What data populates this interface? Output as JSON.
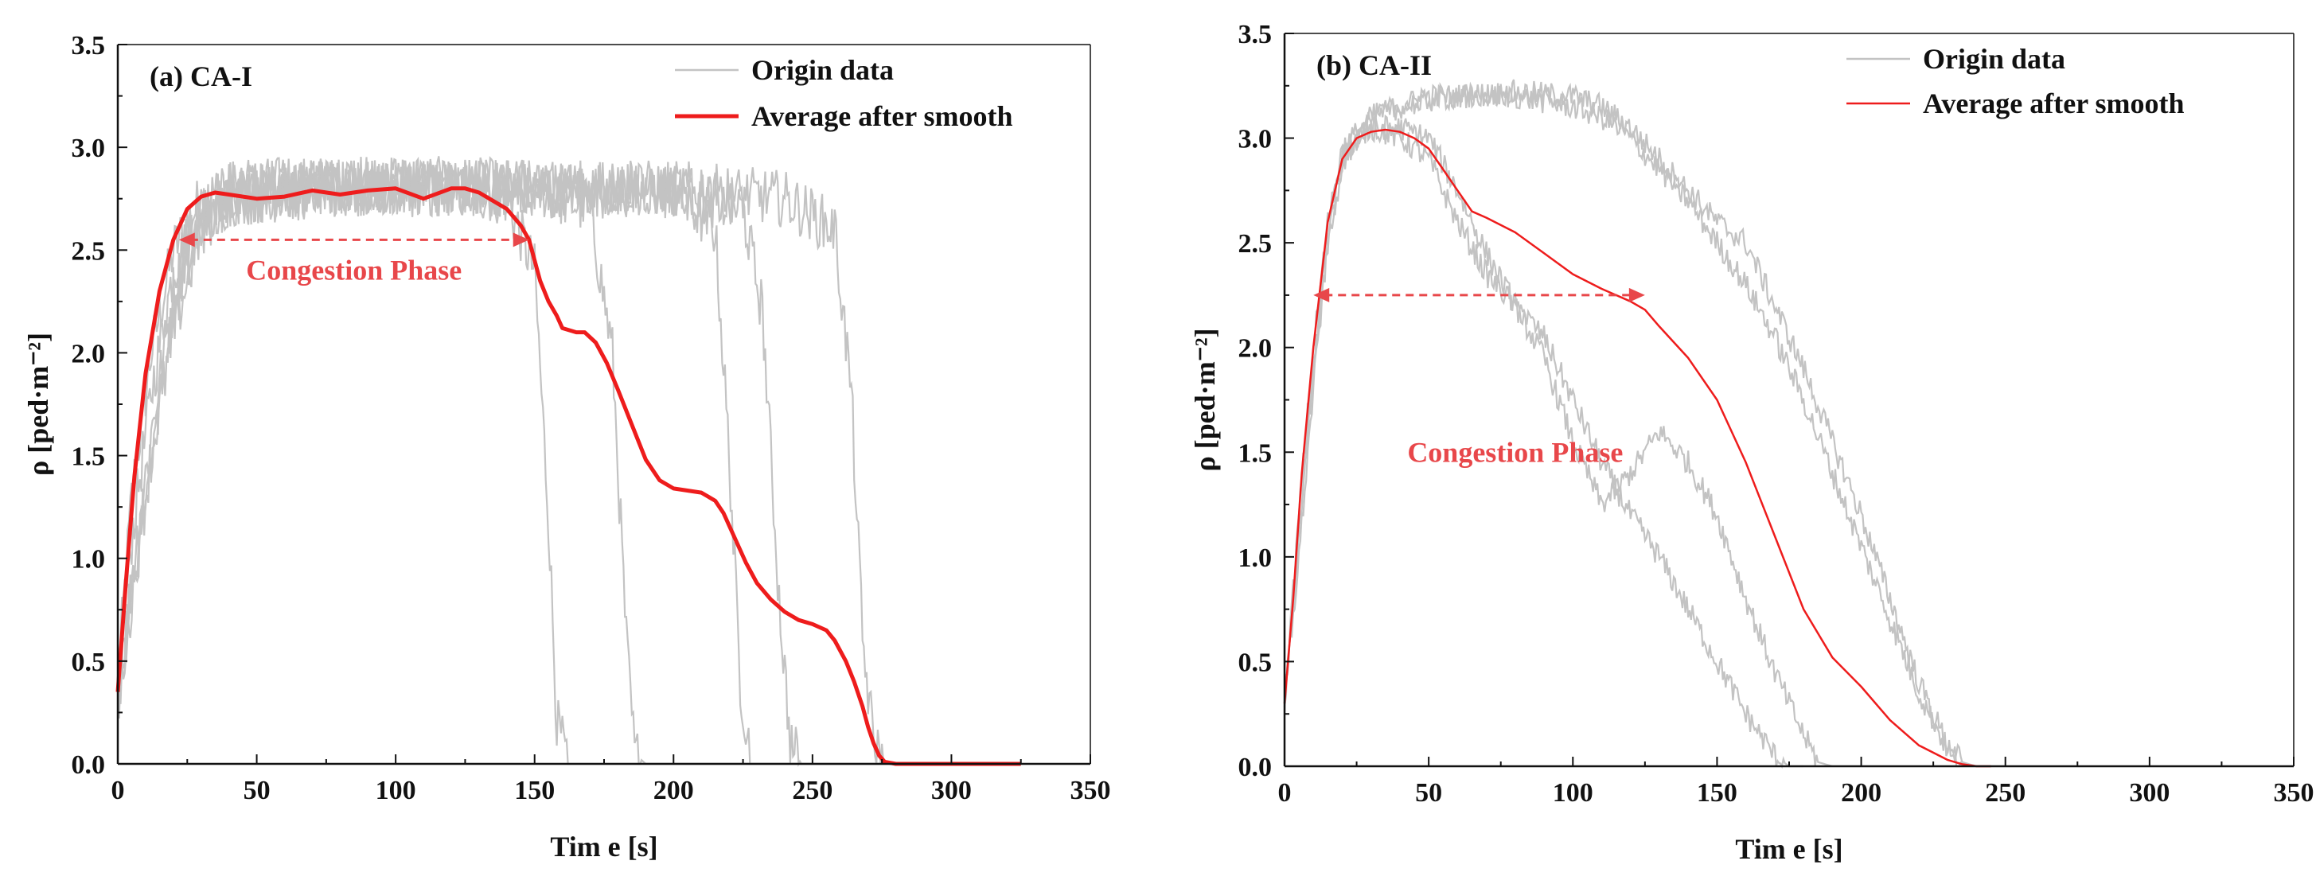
{
  "chart_data": [
    {
      "type": "line",
      "panel_label": "(a) CA-I",
      "xlabel": "Tim e [s]",
      "ylabel": "ρ [ped·m⁻²]",
      "xlim": [
        0,
        350
      ],
      "ylim": [
        0,
        3.5
      ],
      "xticks": [
        "0",
        "50",
        "100",
        "150",
        "200",
        "250",
        "300",
        "350"
      ],
      "yticks": [
        "0.0",
        "0.5",
        "1.0",
        "1.5",
        "2.0",
        "2.5",
        "3.0",
        "3.5"
      ],
      "legend": {
        "position": "top-right",
        "entries": [
          "Origin data",
          "Average after smooth"
        ]
      },
      "annotation": {
        "text": "Congestion Phase",
        "x_start": 22,
        "x_end": 148,
        "y": 2.55
      },
      "series": [
        {
          "name": "Origin data",
          "runs": [
            {
              "x": [
                0,
                5,
                12,
                20,
                30,
                40,
                60,
                90,
                120,
                140,
                150,
                155,
                158,
                162,
                170,
                200,
                250,
                325
              ],
              "y": [
                0.4,
                1.3,
                2.0,
                2.5,
                2.75,
                2.8,
                2.8,
                2.82,
                2.8,
                2.75,
                2.4,
                1.2,
                0.2,
                0.0,
                0.0,
                0.0,
                0.0,
                0.0
              ]
            },
            {
              "x": [
                0,
                5,
                12,
                20,
                30,
                40,
                60,
                90,
                120,
                150,
                170,
                178,
                183,
                186,
                190,
                250,
                325
              ],
              "y": [
                0.35,
                1.1,
                1.8,
                2.4,
                2.7,
                2.8,
                2.82,
                2.8,
                2.82,
                2.8,
                2.7,
                2.0,
                0.6,
                0.05,
                0.0,
                0.0,
                0.0
              ]
            },
            {
              "x": [
                0,
                5,
                12,
                20,
                30,
                40,
                80,
                120,
                160,
                200,
                215,
                220,
                224,
                228,
                232,
                325
              ],
              "y": [
                0.3,
                0.9,
                1.6,
                2.3,
                2.7,
                2.8,
                2.82,
                2.8,
                2.8,
                2.78,
                2.6,
                1.5,
                0.4,
                0.0,
                0.0,
                0.0
              ]
            },
            {
              "x": [
                0,
                5,
                12,
                20,
                30,
                40,
                80,
                120,
                160,
                200,
                225,
                232,
                238,
                242,
                246,
                325
              ],
              "y": [
                0.3,
                0.85,
                1.5,
                2.2,
                2.6,
                2.75,
                2.8,
                2.8,
                2.8,
                2.8,
                2.7,
                2.2,
                0.8,
                0.1,
                0.0,
                0.0
              ]
            },
            {
              "x": [
                0,
                5,
                12,
                20,
                30,
                40,
                80,
                120,
                160,
                200,
                240,
                258,
                264,
                268,
                272,
                276,
                325
              ],
              "y": [
                0.3,
                0.8,
                1.5,
                2.1,
                2.6,
                2.75,
                2.8,
                2.8,
                2.8,
                2.8,
                2.75,
                2.6,
                1.8,
                0.6,
                0.1,
                0.0,
                0.0
              ]
            }
          ]
        },
        {
          "name": "Average after smooth",
          "x": [
            0,
            3,
            6,
            10,
            15,
            20,
            25,
            30,
            35,
            40,
            50,
            60,
            70,
            80,
            90,
            100,
            110,
            120,
            125,
            130,
            140,
            145,
            148,
            150,
            152,
            155,
            158,
            160,
            165,
            168,
            172,
            176,
            180,
            185,
            190,
            195,
            200,
            205,
            210,
            215,
            218,
            222,
            226,
            230,
            235,
            240,
            245,
            250,
            255,
            258,
            262,
            265,
            268,
            270,
            272,
            274,
            276,
            280,
            300,
            325
          ],
          "y": [
            0.35,
            0.9,
            1.4,
            1.9,
            2.3,
            2.55,
            2.7,
            2.76,
            2.78,
            2.77,
            2.75,
            2.76,
            2.79,
            2.77,
            2.79,
            2.8,
            2.75,
            2.8,
            2.8,
            2.78,
            2.7,
            2.62,
            2.55,
            2.45,
            2.35,
            2.25,
            2.18,
            2.12,
            2.1,
            2.1,
            2.05,
            1.95,
            1.82,
            1.65,
            1.48,
            1.38,
            1.34,
            1.33,
            1.32,
            1.28,
            1.22,
            1.1,
            0.98,
            0.88,
            0.8,
            0.74,
            0.7,
            0.68,
            0.65,
            0.6,
            0.5,
            0.4,
            0.28,
            0.18,
            0.1,
            0.04,
            0.01,
            0.0,
            0.0,
            0.0
          ]
        }
      ]
    },
    {
      "type": "line",
      "panel_label": "(b) CA-II",
      "xlabel": "Tim e [s]",
      "ylabel": "ρ [ped·m⁻²]",
      "xlim": [
        0,
        350
      ],
      "ylim": [
        0,
        3.5
      ],
      "xticks": [
        "0",
        "50",
        "100",
        "150",
        "200",
        "250",
        "300",
        "350"
      ],
      "yticks": [
        "0.0",
        "0.5",
        "1.0",
        "1.5",
        "2.0",
        "2.5",
        "3.0",
        "3.5"
      ],
      "legend": {
        "position": "top-right",
        "entries": [
          "Origin data",
          "Average after smooth"
        ]
      },
      "annotation": {
        "text": "Congestion Phase",
        "x_start": 10,
        "x_end": 125,
        "y": 2.25
      },
      "series": [
        {
          "name": "Origin data",
          "runs": [
            {
              "x": [
                0,
                5,
                10,
                15,
                20,
                25,
                30,
                40,
                50,
                60,
                70,
                80,
                90,
                100,
                110,
                120,
                130,
                140,
                150,
                160,
                170,
                175,
                180
              ],
              "y": [
                0.3,
                1.2,
                2.0,
                2.6,
                2.9,
                3.0,
                3.05,
                3.0,
                2.9,
                2.6,
                2.35,
                2.2,
                2.05,
                1.75,
                1.45,
                1.2,
                1.0,
                0.75,
                0.5,
                0.25,
                0.05,
                0.0,
                0.0
              ]
            },
            {
              "x": [
                0,
                5,
                10,
                15,
                20,
                25,
                30,
                40,
                50,
                60,
                70,
                80,
                90,
                100,
                110,
                120,
                130,
                140,
                150,
                160,
                170,
                180,
                185,
                190
              ],
              "y": [
                0.3,
                1.1,
                1.9,
                2.5,
                2.85,
                3.0,
                3.05,
                3.05,
                3.0,
                2.75,
                2.45,
                2.2,
                1.95,
                1.55,
                1.25,
                1.4,
                1.6,
                1.45,
                1.2,
                0.8,
                0.45,
                0.15,
                0.02,
                0.0
              ]
            },
            {
              "x": [
                0,
                5,
                10,
                15,
                20,
                30,
                40,
                50,
                60,
                80,
                100,
                110,
                120,
                130,
                140,
                150,
                160,
                170,
                180,
                190,
                200,
                210,
                220,
                230,
                235,
                240
              ],
              "y": [
                0.3,
                1.1,
                1.9,
                2.6,
                2.95,
                3.1,
                3.15,
                3.2,
                3.2,
                3.22,
                3.2,
                3.15,
                3.05,
                2.9,
                2.75,
                2.6,
                2.5,
                2.2,
                1.9,
                1.55,
                1.2,
                0.8,
                0.4,
                0.1,
                0.02,
                0.0
              ]
            },
            {
              "x": [
                0,
                5,
                10,
                15,
                20,
                30,
                40,
                50,
                60,
                80,
                100,
                110,
                120,
                130,
                140,
                150,
                160,
                170,
                180,
                190,
                200,
                210,
                220,
                230,
                235,
                240
              ],
              "y": [
                0.3,
                1.0,
                1.8,
                2.5,
                2.9,
                3.1,
                3.15,
                3.18,
                3.2,
                3.2,
                3.15,
                3.1,
                3.0,
                2.85,
                2.7,
                2.5,
                2.3,
                2.05,
                1.75,
                1.4,
                1.05,
                0.7,
                0.35,
                0.08,
                0.01,
                0.0
              ]
            }
          ]
        },
        {
          "name": "Average after smooth",
          "x": [
            0,
            3,
            6,
            10,
            15,
            20,
            25,
            30,
            35,
            40,
            45,
            50,
            55,
            60,
            65,
            70,
            80,
            90,
            100,
            110,
            120,
            125,
            130,
            140,
            150,
            160,
            170,
            180,
            190,
            200,
            210,
            220,
            230,
            235,
            240,
            245
          ],
          "y": [
            0.3,
            0.8,
            1.4,
            2.0,
            2.6,
            2.9,
            3.0,
            3.03,
            3.04,
            3.03,
            3.0,
            2.95,
            2.85,
            2.75,
            2.65,
            2.62,
            2.55,
            2.45,
            2.35,
            2.28,
            2.22,
            2.18,
            2.1,
            1.95,
            1.75,
            1.45,
            1.1,
            0.75,
            0.52,
            0.38,
            0.22,
            0.1,
            0.03,
            0.01,
            0.0,
            0.0
          ]
        }
      ]
    }
  ]
}
